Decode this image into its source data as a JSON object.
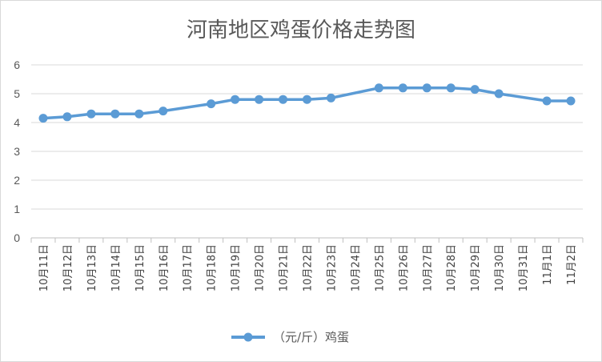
{
  "chart_data": {
    "type": "line",
    "title": "河南地区鸡蛋价格走势图",
    "xlabel": "",
    "ylabel": "",
    "ylim": [
      0,
      6
    ],
    "yticks": [
      0,
      1,
      2,
      3,
      4,
      5,
      6
    ],
    "grid": true,
    "legend_position": "bottom",
    "line_color": "#5b9bd5",
    "categories": [
      "10月11日",
      "10月12日",
      "10月13日",
      "10月14日",
      "10月15日",
      "10月16日",
      "10月17日",
      "10月18日",
      "10月19日",
      "10月20日",
      "10月21日",
      "10月22日",
      "10月23日",
      "10月24日",
      "10月25日",
      "10月26日",
      "10月27日",
      "10月28日",
      "10月29日",
      "10月30日",
      "10月31日",
      "11月1日",
      "11月2日"
    ],
    "series": [
      {
        "name": "（元/斤）鸡蛋",
        "values": [
          4.15,
          4.2,
          4.3,
          4.3,
          4.3,
          4.4,
          null,
          4.65,
          4.8,
          4.8,
          4.8,
          4.8,
          4.85,
          null,
          5.2,
          5.2,
          5.2,
          5.2,
          5.15,
          5.0,
          null,
          4.75,
          4.75
        ]
      }
    ]
  }
}
